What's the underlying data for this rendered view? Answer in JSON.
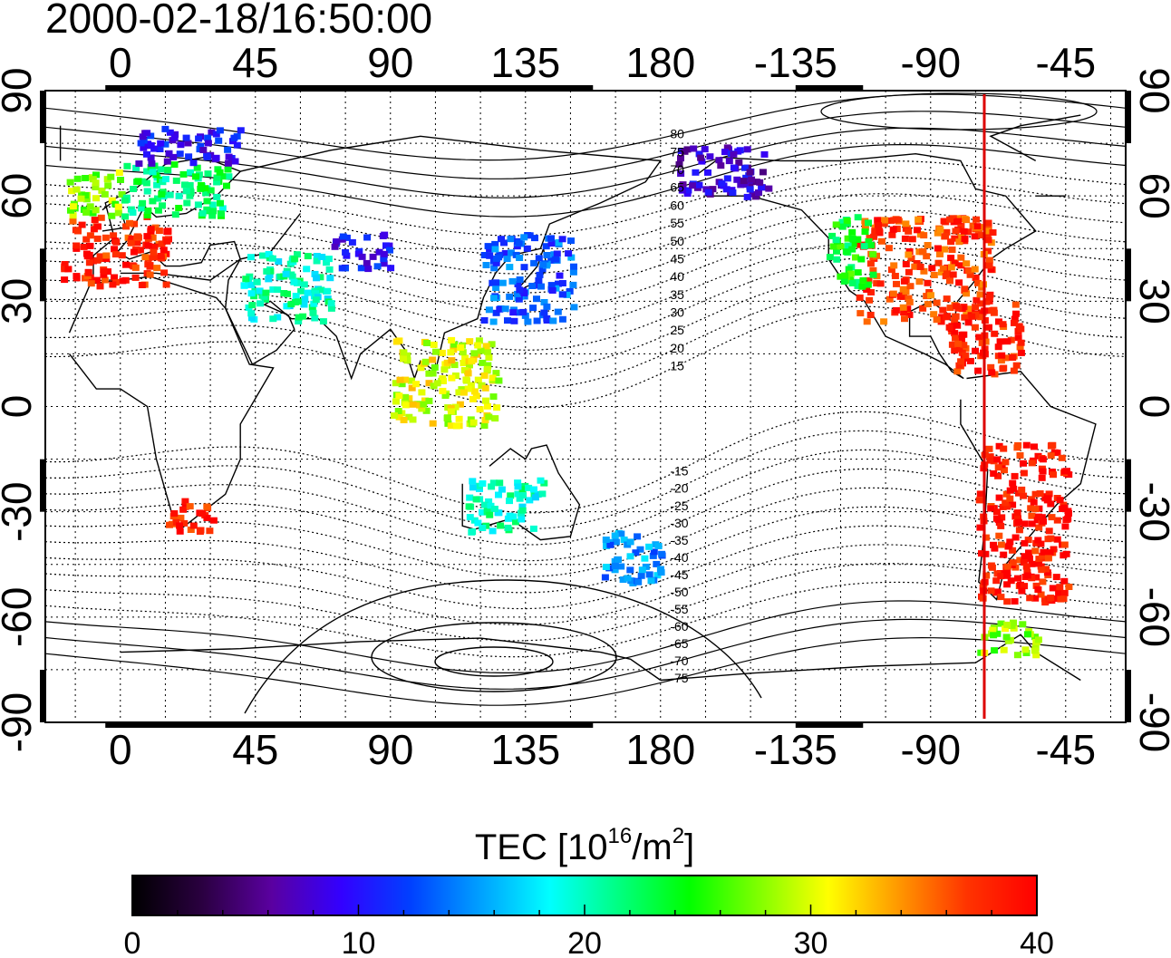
{
  "timestamp": "2000-02-18/16:50:00",
  "map": {
    "top_lon_ticks": [
      "0",
      "45",
      "90",
      "135",
      "180",
      "-135",
      "-90",
      "-45"
    ],
    "bottom_lon_ticks": [
      "0",
      "45",
      "90",
      "135",
      "180",
      "-135",
      "-90",
      "-45"
    ],
    "lat_ticks": [
      "90",
      "60",
      "30",
      "0",
      "-30",
      "-60",
      "-90"
    ],
    "magnetic_lat_labels": [
      "80",
      "75",
      "70",
      "65",
      "60",
      "55",
      "50",
      "45",
      "40",
      "35",
      "30",
      "25",
      "20",
      "15",
      "-15",
      "-20",
      "-25",
      "-30",
      "-35",
      "-40",
      "-45",
      "-50",
      "-55",
      "-60",
      "-65",
      "-70",
      "-75"
    ],
    "terminator_color": "#dd0000"
  },
  "colorbar": {
    "title_prefix": "TEC  [10",
    "title_exp1": "16",
    "title_mid": "/m",
    "title_exp2": "2",
    "title_suffix": "]",
    "min": 0,
    "max": 40,
    "ticks": [
      "0",
      "10",
      "20",
      "30",
      "40"
    ],
    "stops": [
      "#000000",
      "#2a0040",
      "#5a00a0",
      "#3300ff",
      "#0040ff",
      "#00a0ff",
      "#00ffff",
      "#00ff80",
      "#00ff00",
      "#80ff00",
      "#ffff00",
      "#ff9900",
      "#ff3300",
      "#ff0000"
    ]
  },
  "chart_data": {
    "type": "heatmap",
    "title": "2000-02-18/16:50:00",
    "xlabel": "",
    "ylabel": "",
    "xlim": [
      -25,
      335
    ],
    "ylim": [
      -90,
      90
    ],
    "units": "10^16/m^2",
    "regions": [
      {
        "lon": [
          -20,
          15
        ],
        "lat": [
          35,
          55
        ],
        "value": 38
      },
      {
        "lon": [
          -18,
          0
        ],
        "lat": [
          55,
          68
        ],
        "value": 28
      },
      {
        "lon": [
          0,
          35
        ],
        "lat": [
          55,
          70
        ],
        "value": 22
      },
      {
        "lon": [
          5,
          40
        ],
        "lat": [
          70,
          80
        ],
        "value": 10
      },
      {
        "lon": [
          40,
          70
        ],
        "lat": [
          25,
          45
        ],
        "value": 20
      },
      {
        "lon": [
          70,
          90
        ],
        "lat": [
          40,
          50
        ],
        "value": 10
      },
      {
        "lon": [
          120,
          150
        ],
        "lat": [
          25,
          50
        ],
        "value": 13
      },
      {
        "lon": [
          90,
          125
        ],
        "lat": [
          -5,
          20
        ],
        "value": 30
      },
      {
        "lon": [
          -115,
          -70
        ],
        "lat": [
          25,
          55
        ],
        "value": 37
      },
      {
        "lon": [
          -125,
          -110
        ],
        "lat": [
          35,
          55
        ],
        "value": 24
      },
      {
        "lon": [
          -175,
          -145
        ],
        "lat": [
          60,
          75
        ],
        "value": 8
      },
      {
        "lon": [
          -85,
          -60
        ],
        "lat": [
          10,
          30
        ],
        "value": 38
      },
      {
        "lon": [
          -75,
          -45
        ],
        "lat": [
          -55,
          -10
        ],
        "value": 39
      },
      {
        "lon": [
          15,
          30
        ],
        "lat": [
          -35,
          -25
        ],
        "value": 38
      },
      {
        "lon": [
          115,
          140
        ],
        "lat": [
          -35,
          -20
        ],
        "value": 20
      },
      {
        "lon": [
          160,
          180
        ],
        "lat": [
          -50,
          -35
        ],
        "value": 15
      },
      {
        "lon": [
          -75,
          -55
        ],
        "lat": [
          -70,
          -60
        ],
        "value": 28
      }
    ]
  }
}
